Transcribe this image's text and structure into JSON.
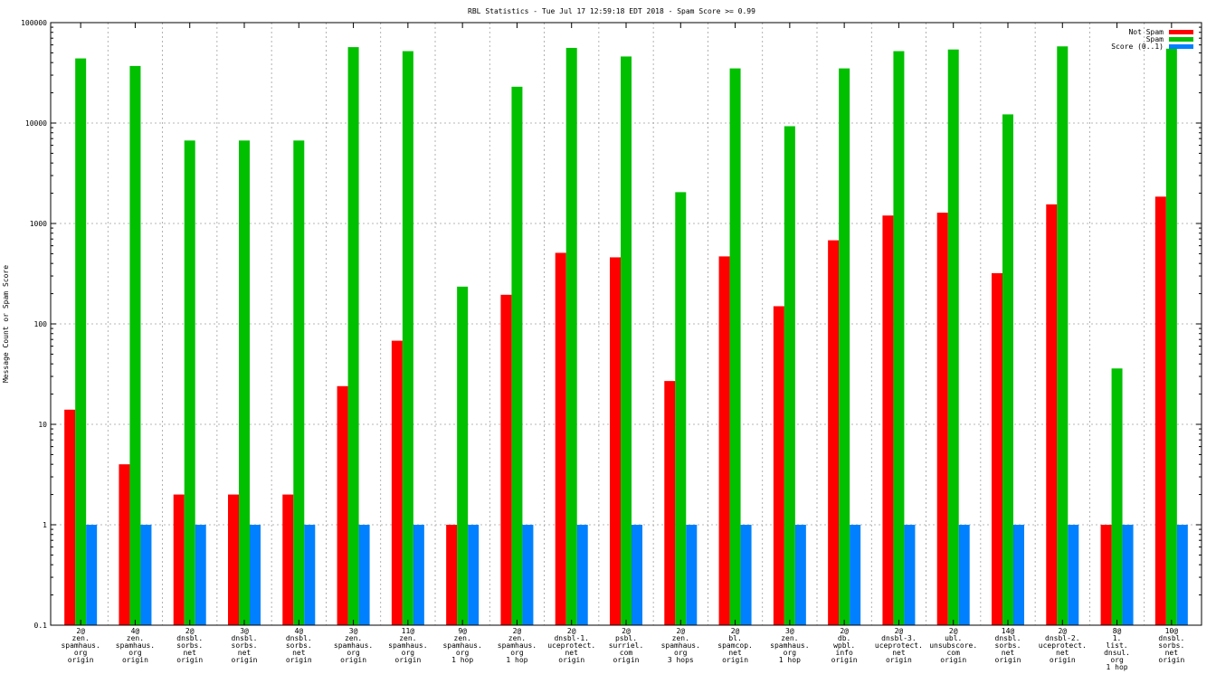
{
  "chart_data": {
    "type": "bar",
    "title": "RBL Statistics - Tue Jul 17 12:59:18 EDT 2018 - Spam Score >= 0.99",
    "xlabel": "",
    "ylabel": "Message Count or Spam Score",
    "yscale": "log",
    "ylim": [
      0.1,
      100000
    ],
    "y_ticks": [
      "0.1",
      "1",
      "10",
      "100",
      "1000",
      "10000",
      "100000"
    ],
    "grid": true,
    "legend_position": "top-right",
    "categories": [
      [
        "2@",
        "zen.",
        "spamhaus.",
        "org",
        "origin"
      ],
      [
        "4@",
        "zen.",
        "spamhaus.",
        "org",
        "origin"
      ],
      [
        "2@",
        "dnsbl.",
        "sorbs.",
        "net",
        "origin"
      ],
      [
        "3@",
        "dnsbl.",
        "sorbs.",
        "net",
        "origin"
      ],
      [
        "4@",
        "dnsbl.",
        "sorbs.",
        "net",
        "origin"
      ],
      [
        "3@",
        "zen.",
        "spamhaus.",
        "org",
        "origin"
      ],
      [
        "11@",
        "zen.",
        "spamhaus.",
        "org",
        "origin"
      ],
      [
        "9@",
        "zen.",
        "spamhaus.",
        "org",
        "1 hop"
      ],
      [
        "2@",
        "zen.",
        "spamhaus.",
        "org",
        "1 hop"
      ],
      [
        "2@",
        "dnsbl-1.",
        "uceprotect.",
        "net",
        "origin"
      ],
      [
        "2@",
        "psbl.",
        "surriel.",
        "com",
        "origin"
      ],
      [
        "2@",
        "zen.",
        "spamhaus.",
        "org",
        "3 hops"
      ],
      [
        "2@",
        "bl.",
        "spamcop.",
        "net",
        "origin"
      ],
      [
        "3@",
        "zen.",
        "spamhaus.",
        "org",
        "1 hop"
      ],
      [
        "2@",
        "db.",
        "wpbl.",
        "info",
        "origin"
      ],
      [
        "2@",
        "dnsbl-3.",
        "uceprotect.",
        "net",
        "origin"
      ],
      [
        "2@",
        "ubl.",
        "unsubscore.",
        "com",
        "origin"
      ],
      [
        "14@",
        "dnsbl.",
        "sorbs.",
        "net",
        "origin"
      ],
      [
        "2@",
        "dnsbl-2.",
        "uceprotect.",
        "net",
        "origin"
      ],
      [
        "8@",
        "1.",
        "list.",
        "dnsul.",
        "org",
        "1 hop"
      ],
      [
        "10@",
        "dnsbl.",
        "sorbs.",
        "net",
        "origin"
      ]
    ],
    "series": [
      {
        "name": "Not Spam",
        "color": "#ff0000",
        "values": [
          14,
          4,
          2,
          2,
          2,
          24,
          68,
          1,
          195,
          510,
          460,
          27,
          470,
          150,
          680,
          1200,
          1280,
          320,
          1550,
          1,
          1850
        ]
      },
      {
        "name": "Spam",
        "color": "#00c000",
        "values": [
          44000,
          37000,
          6700,
          6700,
          6700,
          57000,
          52000,
          235,
          23000,
          56000,
          46000,
          2050,
          35000,
          9300,
          35000,
          52000,
          54000,
          12200,
          58000,
          36,
          55000
        ]
      },
      {
        "name": "Score (0..1)",
        "color": "#0080ff",
        "values": [
          1,
          1,
          1,
          1,
          1,
          1,
          1,
          1,
          1,
          1,
          1,
          1,
          1,
          1,
          1,
          1,
          1,
          1,
          1,
          1,
          1
        ]
      }
    ]
  }
}
